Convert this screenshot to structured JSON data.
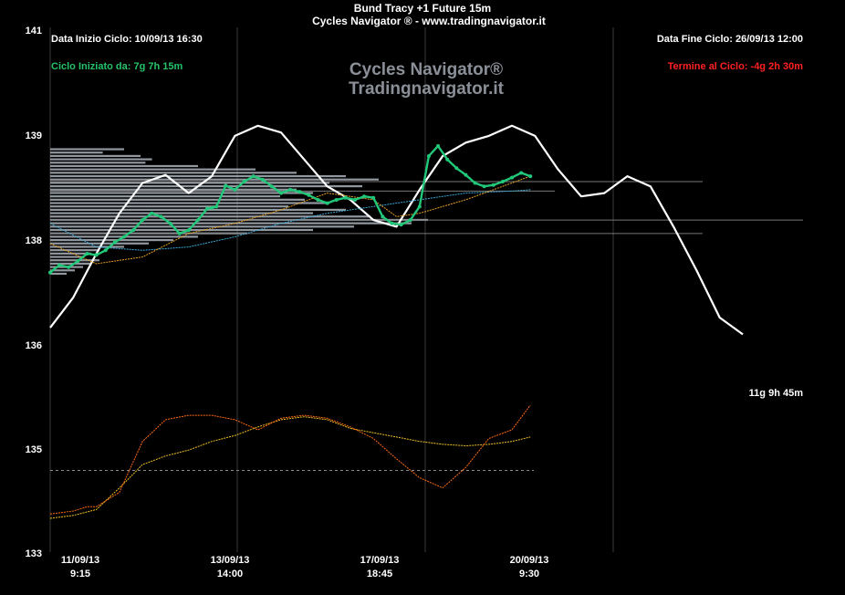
{
  "header": {
    "title": "Bund  Tracy +1  Future 15m",
    "subtitle": "Cycles Navigator ® - www.tradingnavigator.it"
  },
  "watermark": {
    "line1": "Cycles Navigator®",
    "line2": "Tradingnavigator.it"
  },
  "info": {
    "start_date": "Data Inizio Ciclo: 10/09/13 16:30",
    "end_date": "Data Fine Ciclo: 26/09/13 12:00",
    "cycle_started": "Ciclo Iniziato da: 7g 7h 15m",
    "cycle_remaining": "Termine al Ciclo: -4g 2h 30m",
    "projection_label": "11g 9h 45m"
  },
  "colors": {
    "background": "#000000",
    "price": "#22c87a",
    "cycle": "#ffffff",
    "cycle_started": "#25c36a",
    "cycle_remaining": "#ff2020",
    "ma_fast": "#e8a020",
    "ma_slow": "#3aa8d8",
    "osc_fast": "#ff6a10",
    "osc_slow": "#f0c020",
    "volume_profile": "#a9b2bb",
    "grid": "#3a3a3a"
  },
  "chart_data": {
    "type": "line",
    "y_ticks": [
      "141",
      "139",
      "138",
      "136",
      "135",
      "133"
    ],
    "x_ticks": [
      {
        "date": "11/09/13",
        "time": "9:15"
      },
      {
        "date": "13/09/13",
        "time": "14:00"
      },
      {
        "date": "17/09/13",
        "time": "18:45"
      },
      {
        "date": "20/09/13",
        "time": "9:30"
      }
    ],
    "price_panel_range": [
      136.6,
      139.8
    ],
    "oscillator_panel_range": [
      0,
      100
    ],
    "series": [
      {
        "id": "price",
        "x": [
          0,
          2,
          4,
          6,
          8,
          10,
          12,
          14,
          16,
          18,
          20,
          22,
          24,
          26,
          28,
          30,
          32,
          34,
          35,
          36,
          38,
          40,
          42,
          44,
          46,
          48,
          50,
          52,
          54,
          56,
          58,
          60,
          62,
          64,
          66,
          68,
          70,
          72,
          74,
          76,
          78,
          80,
          82,
          84,
          86,
          88,
          90,
          92,
          94,
          96,
          98,
          100,
          102,
          104
        ],
        "values": [
          137.27,
          137.38,
          137.35,
          137.44,
          137.55,
          137.53,
          137.6,
          137.72,
          137.8,
          137.9,
          138.05,
          138.15,
          138.1,
          138.0,
          137.85,
          137.9,
          138.05,
          138.22,
          138.23,
          138.25,
          138.56,
          138.5,
          138.62,
          138.7,
          138.65,
          138.55,
          138.45,
          138.5,
          138.47,
          138.42,
          138.35,
          138.3,
          138.35,
          138.38,
          138.35,
          138.4,
          138.38,
          138.1,
          138.0,
          137.98,
          138.05,
          138.25,
          139.0,
          139.15,
          138.95,
          138.82,
          138.72,
          138.6,
          138.55,
          138.57,
          138.62,
          138.68,
          138.75,
          138.7
        ]
      },
      {
        "id": "cycle_projection",
        "x": [
          0,
          5,
          10,
          15,
          20,
          25,
          30,
          35,
          40,
          45,
          50,
          55,
          60,
          65,
          70,
          75,
          80,
          85,
          90,
          95,
          100,
          105,
          110,
          115,
          120,
          125,
          130,
          135,
          140,
          145,
          150
        ],
        "values": [
          136.45,
          136.9,
          137.55,
          138.15,
          138.6,
          138.72,
          138.45,
          138.7,
          139.3,
          139.45,
          139.35,
          138.95,
          138.55,
          138.35,
          138.05,
          137.95,
          138.5,
          139.0,
          139.2,
          139.3,
          139.45,
          139.3,
          138.8,
          138.4,
          138.45,
          138.7,
          138.55,
          137.95,
          137.3,
          136.6,
          136.35
        ]
      },
      {
        "id": "ma_fast",
        "x": [
          0,
          10,
          20,
          30,
          40,
          50,
          60,
          70,
          75,
          80,
          90,
          100,
          104
        ],
        "values": [
          137.7,
          137.4,
          137.5,
          137.85,
          138.0,
          138.2,
          138.45,
          138.35,
          138.1,
          138.15,
          138.35,
          138.6,
          138.7
        ]
      },
      {
        "id": "ma_slow",
        "x": [
          0,
          10,
          20,
          30,
          40,
          50,
          60,
          70,
          80,
          90,
          100,
          104
        ],
        "values": [
          138.0,
          137.65,
          137.6,
          137.65,
          137.8,
          138.0,
          138.15,
          138.25,
          138.35,
          138.45,
          138.48,
          138.5
        ]
      },
      {
        "id": "osc_fast",
        "x": [
          0,
          5,
          8,
          10,
          15,
          20,
          25,
          30,
          35,
          40,
          45,
          50,
          55,
          60,
          65,
          70,
          75,
          80,
          85,
          90,
          95,
          100,
          104
        ],
        "values": [
          20,
          22,
          25,
          25,
          35,
          70,
          85,
          88,
          88,
          85,
          78,
          86,
          88,
          86,
          80,
          72,
          58,
          45,
          38,
          52,
          72,
          78,
          95
        ]
      },
      {
        "id": "osc_slow",
        "x": [
          0,
          5,
          10,
          15,
          20,
          25,
          30,
          35,
          40,
          45,
          50,
          55,
          60,
          65,
          70,
          75,
          80,
          85,
          90,
          95,
          100,
          104
        ],
        "values": [
          17,
          19,
          23,
          38,
          54,
          60,
          64,
          70,
          74,
          80,
          85,
          87,
          85,
          79,
          76,
          73,
          70,
          68,
          67,
          68,
          70,
          73
        ]
      }
    ],
    "horizontal_ref": {
      "panel": "oscillator",
      "value": 50,
      "style": "dashed"
    },
    "volume_profile": [
      {
        "price": 139.1,
        "len": 0.45
      },
      {
        "price": 139.05,
        "len": 0.32
      },
      {
        "price": 139.0,
        "len": 0.55
      },
      {
        "price": 138.95,
        "len": 0.62
      },
      {
        "price": 138.9,
        "len": 0.58
      },
      {
        "price": 138.85,
        "len": 0.9
      },
      {
        "price": 138.8,
        "len": 1.25
      },
      {
        "price": 138.75,
        "len": 1.5
      },
      {
        "price": 138.7,
        "len": 1.8
      },
      {
        "price": 138.65,
        "len": 2.0
      },
      {
        "price": 138.6,
        "len": 1.7
      },
      {
        "price": 138.55,
        "len": 1.9
      },
      {
        "price": 138.5,
        "len": 1.5
      },
      {
        "price": 138.45,
        "len": 1.6
      },
      {
        "price": 138.4,
        "len": 1.4
      },
      {
        "price": 138.35,
        "len": 1.55
      },
      {
        "price": 138.3,
        "len": 1.7
      },
      {
        "price": 138.25,
        "len": 1.45
      },
      {
        "price": 138.2,
        "len": 1.8
      },
      {
        "price": 138.15,
        "len": 1.6
      },
      {
        "price": 138.1,
        "len": 1.95
      },
      {
        "price": 138.05,
        "len": 2.3
      },
      {
        "price": 138.0,
        "len": 2.2
      },
      {
        "price": 137.95,
        "len": 1.85
      },
      {
        "price": 137.9,
        "len": 1.6
      },
      {
        "price": 137.85,
        "len": 1.2
      },
      {
        "price": 137.8,
        "len": 0.9
      },
      {
        "price": 137.75,
        "len": 0.75
      },
      {
        "price": 137.7,
        "len": 0.6
      },
      {
        "price": 137.65,
        "len": 0.45
      },
      {
        "price": 137.6,
        "len": 0.3
      },
      {
        "price": 137.55,
        "len": 0.25
      },
      {
        "price": 137.5,
        "len": 0.2
      },
      {
        "price": 137.45,
        "len": 0.3
      },
      {
        "price": 137.4,
        "len": 0.25
      },
      {
        "price": 137.35,
        "len": 0.2
      },
      {
        "price": 137.3,
        "len": 0.15
      },
      {
        "price": 137.25,
        "len": 0.1
      }
    ]
  }
}
